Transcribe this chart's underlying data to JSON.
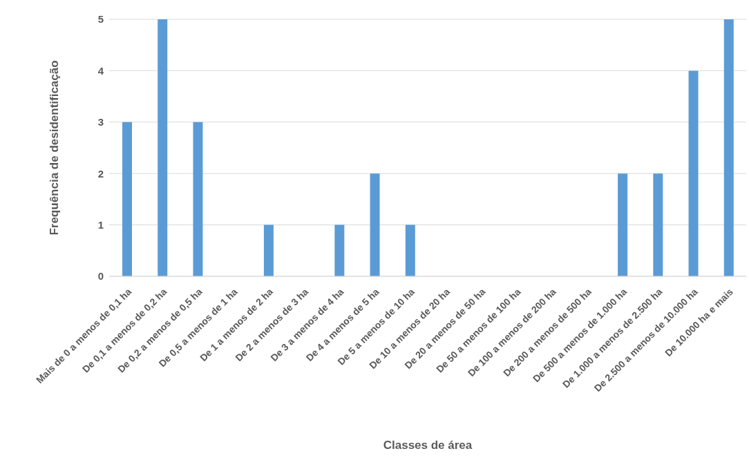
{
  "chart_data": {
    "type": "bar",
    "xlabel": "Classes de área",
    "ylabel": "Frequência de desidentificação",
    "categories": [
      "Mais de 0 a menos de 0,1 ha",
      "De 0,1 a menos de 0,2 ha",
      "De 0,2 a menos de 0,5 ha",
      "De 0,5 a menos de 1 ha",
      "De 1 a menos de 2 ha",
      "De 2 a menos de 3 ha",
      "De 3 a menos de 4 ha",
      "De 4 a menos de 5 ha",
      "De 5 a menos de 10 ha",
      "De 10 a menos de 20 ha",
      "De 20 a menos de 50 ha",
      "De 50 a menos de 100 ha",
      "De 100 a menos de 200 ha",
      "De 200 a menos de 500 ha",
      "De 500 a menos de 1.000 ha",
      "De 1.000 a menos de 2.500 ha",
      "De 2.500 a menos de 10.000 ha",
      "De 10.000 ha e mais"
    ],
    "values": [
      3,
      5,
      3,
      0,
      1,
      0,
      1,
      2,
      1,
      0,
      0,
      0,
      0,
      0,
      2,
      2,
      4,
      5
    ],
    "color": "#5b9bd5",
    "ylim": [
      0,
      5
    ],
    "yticks": [
      0,
      1,
      2,
      3,
      4,
      5
    ],
    "grid": "y",
    "legend": false
  }
}
